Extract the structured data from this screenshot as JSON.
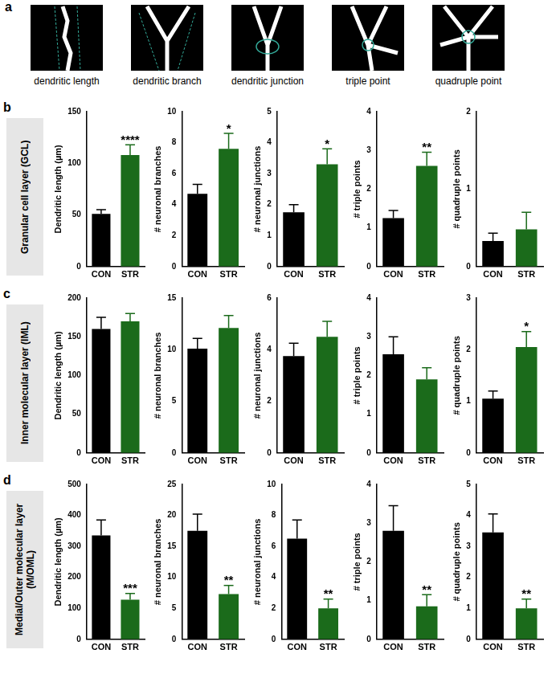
{
  "panel_a": {
    "label": "a",
    "captions": [
      "dendritic length",
      "dendritic branch",
      "dendritic junction",
      "triple point",
      "quadruple point"
    ]
  },
  "panels": [
    {
      "label": "b",
      "title": "Granular cell layer (GCL)"
    },
    {
      "label": "c",
      "title": "Inner molecular layer (IML)"
    },
    {
      "label": "d",
      "title": "Medial/Outer molecular layer (M/OML)"
    }
  ],
  "chart_data": [
    {
      "panel": "b",
      "type": "bar",
      "ylabel": "Dendritic length (µm)",
      "categories": [
        "CON",
        "STR"
      ],
      "values": [
        51,
        108
      ],
      "errors": [
        4,
        10
      ],
      "colors": [
        "#000000",
        "#1b6b1b"
      ],
      "ylim": [
        0,
        150
      ],
      "yticks": [
        0,
        50,
        100,
        150
      ],
      "annotations": [
        {
          "text": "****",
          "category": "STR"
        }
      ]
    },
    {
      "panel": "b",
      "type": "bar",
      "ylabel": "# neuronal branches",
      "categories": [
        "CON",
        "STR"
      ],
      "values": [
        4.7,
        7.6
      ],
      "errors": [
        0.6,
        1.0
      ],
      "colors": [
        "#000000",
        "#1b6b1b"
      ],
      "ylim": [
        0,
        10
      ],
      "yticks": [
        0,
        2,
        4,
        6,
        8,
        10
      ],
      "annotations": [
        {
          "text": "*",
          "category": "STR"
        }
      ]
    },
    {
      "panel": "b",
      "type": "bar",
      "ylabel": "# neuronal junctions",
      "categories": [
        "CON",
        "STR"
      ],
      "values": [
        1.75,
        3.3
      ],
      "errors": [
        0.25,
        0.5
      ],
      "colors": [
        "#000000",
        "#1b6b1b"
      ],
      "ylim": [
        0,
        5
      ],
      "yticks": [
        0,
        1,
        2,
        3,
        4,
        5
      ],
      "annotations": [
        {
          "text": "*",
          "category": "STR"
        }
      ]
    },
    {
      "panel": "b",
      "type": "bar",
      "ylabel": "# triple points",
      "categories": [
        "CON",
        "STR"
      ],
      "values": [
        1.25,
        2.6
      ],
      "errors": [
        0.2,
        0.35
      ],
      "colors": [
        "#000000",
        "#1b6b1b"
      ],
      "ylim": [
        0,
        4
      ],
      "yticks": [
        0,
        1,
        2,
        3,
        4
      ],
      "annotations": [
        {
          "text": "**",
          "category": "STR"
        }
      ]
    },
    {
      "panel": "b",
      "type": "bar",
      "ylabel": "# quadruple points",
      "categories": [
        "CON",
        "STR"
      ],
      "values": [
        0.33,
        0.48
      ],
      "errors": [
        0.1,
        0.22
      ],
      "colors": [
        "#000000",
        "#1b6b1b"
      ],
      "ylim": [
        0,
        2
      ],
      "yticks": [
        0,
        1,
        2
      ],
      "annotations": []
    },
    {
      "panel": "c",
      "type": "bar",
      "ylabel": "Dendritic length (µm)",
      "categories": [
        "CON",
        "STR"
      ],
      "values": [
        160,
        170
      ],
      "errors": [
        15,
        10
      ],
      "colors": [
        "#000000",
        "#1b6b1b"
      ],
      "ylim": [
        0,
        200
      ],
      "yticks": [
        0,
        50,
        100,
        150,
        200
      ],
      "annotations": []
    },
    {
      "panel": "c",
      "type": "bar",
      "ylabel": "# neuronal branches",
      "categories": [
        "CON",
        "STR"
      ],
      "values": [
        10.1,
        12.1
      ],
      "errors": [
        1.0,
        1.2
      ],
      "colors": [
        "#000000",
        "#1b6b1b"
      ],
      "ylim": [
        0,
        15
      ],
      "yticks": [
        0,
        5,
        10,
        15
      ],
      "annotations": []
    },
    {
      "panel": "c",
      "type": "bar",
      "ylabel": "# neuronal junctions",
      "categories": [
        "CON",
        "STR"
      ],
      "values": [
        3.75,
        4.5
      ],
      "errors": [
        0.5,
        0.6
      ],
      "colors": [
        "#000000",
        "#1b6b1b"
      ],
      "ylim": [
        0,
        6
      ],
      "yticks": [
        0,
        2,
        4,
        6
      ],
      "annotations": []
    },
    {
      "panel": "c",
      "type": "bar",
      "ylabel": "# triple points",
      "categories": [
        "CON",
        "STR"
      ],
      "values": [
        2.55,
        1.9
      ],
      "errors": [
        0.45,
        0.3
      ],
      "colors": [
        "#000000",
        "#1b6b1b"
      ],
      "ylim": [
        0,
        4
      ],
      "yticks": [
        0,
        1,
        2,
        3,
        4
      ],
      "annotations": []
    },
    {
      "panel": "c",
      "type": "bar",
      "ylabel": "# quadruple points",
      "categories": [
        "CON",
        "STR"
      ],
      "values": [
        1.05,
        2.05
      ],
      "errors": [
        0.15,
        0.3
      ],
      "colors": [
        "#000000",
        "#1b6b1b"
      ],
      "ylim": [
        0,
        3
      ],
      "yticks": [
        0,
        1,
        2,
        3
      ],
      "annotations": [
        {
          "text": "*",
          "category": "STR"
        }
      ]
    },
    {
      "panel": "d",
      "type": "bar",
      "ylabel": "Dendritic length (µm)",
      "categories": [
        "CON",
        "STR"
      ],
      "values": [
        335,
        128
      ],
      "errors": [
        50,
        20
      ],
      "colors": [
        "#000000",
        "#1b6b1b"
      ],
      "ylim": [
        0,
        500
      ],
      "yticks": [
        0,
        100,
        200,
        300,
        400,
        500
      ],
      "annotations": [
        {
          "text": "***",
          "category": "STR"
        }
      ]
    },
    {
      "panel": "d",
      "type": "bar",
      "ylabel": "# neuronal branches",
      "categories": [
        "CON",
        "STR"
      ],
      "values": [
        17.5,
        7.3
      ],
      "errors": [
        2.7,
        1.4
      ],
      "colors": [
        "#000000",
        "#1b6b1b"
      ],
      "ylim": [
        0,
        25
      ],
      "yticks": [
        0,
        5,
        10,
        15,
        20,
        25
      ],
      "annotations": [
        {
          "text": "**",
          "category": "STR"
        }
      ]
    },
    {
      "panel": "d",
      "type": "bar",
      "ylabel": "# neuronal junctions",
      "categories": [
        "CON",
        "STR"
      ],
      "values": [
        6.5,
        2.0
      ],
      "errors": [
        1.2,
        0.6
      ],
      "colors": [
        "#000000",
        "#1b6b1b"
      ],
      "ylim": [
        0,
        10
      ],
      "yticks": [
        0,
        2,
        4,
        6,
        8,
        10
      ],
      "annotations": [
        {
          "text": "**",
          "category": "STR"
        }
      ]
    },
    {
      "panel": "d",
      "type": "bar",
      "ylabel": "# triple points",
      "categories": [
        "CON",
        "STR"
      ],
      "values": [
        2.8,
        0.85
      ],
      "errors": [
        0.65,
        0.3
      ],
      "colors": [
        "#000000",
        "#1b6b1b"
      ],
      "ylim": [
        0,
        4
      ],
      "yticks": [
        0,
        1,
        2,
        3,
        4
      ],
      "annotations": [
        {
          "text": "**",
          "category": "STR"
        }
      ]
    },
    {
      "panel": "d",
      "type": "bar",
      "ylabel": "# quadruple points",
      "categories": [
        "CON",
        "STR"
      ],
      "values": [
        3.45,
        1.0
      ],
      "errors": [
        0.6,
        0.3
      ],
      "colors": [
        "#000000",
        "#1b6b1b"
      ],
      "ylim": [
        0,
        5
      ],
      "yticks": [
        0,
        1,
        2,
        3,
        4,
        5
      ],
      "annotations": [
        {
          "text": "**",
          "category": "STR"
        }
      ]
    }
  ]
}
